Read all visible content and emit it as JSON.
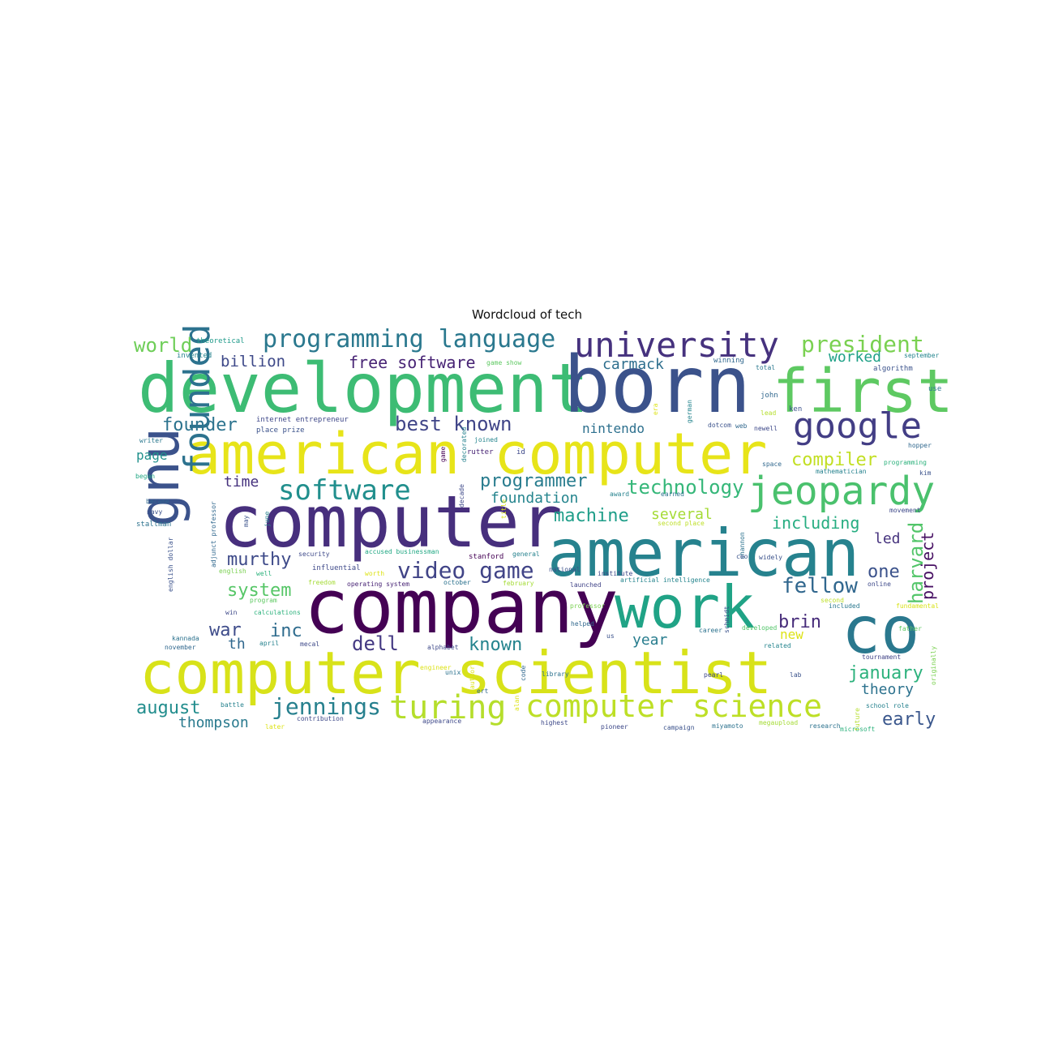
{
  "chart_data": {
    "type": "wordcloud",
    "title": "Wordcloud of tech",
    "background": "#ffffff",
    "colormap": "viridis",
    "words": [
      {
        "text": "development",
        "color": "#3dbc74"
      },
      {
        "text": "born",
        "color": "#3b528b"
      },
      {
        "text": "first",
        "color": "#5ec962"
      },
      {
        "text": "american computer",
        "color": "#e7e419"
      },
      {
        "text": "computer",
        "color": "#472f7d"
      },
      {
        "text": "american",
        "color": "#26828e"
      },
      {
        "text": "company",
        "color": "#440154"
      },
      {
        "text": "work",
        "color": "#20a386"
      },
      {
        "text": "co",
        "color": "#2a788e"
      },
      {
        "text": "computer scientist",
        "color": "#d8e219"
      },
      {
        "text": "gnu",
        "color": "#3b528b"
      },
      {
        "text": "founded",
        "color": "#2c728e"
      },
      {
        "text": "university",
        "color": "#46327e"
      },
      {
        "text": "google",
        "color": "#433e85"
      },
      {
        "text": "jeopardy",
        "color": "#4ac16d"
      },
      {
        "text": "programming language",
        "color": "#2a788e"
      },
      {
        "text": "president",
        "color": "#7ad151"
      },
      {
        "text": "computer science",
        "color": "#bddf26"
      },
      {
        "text": "turing",
        "color": "#b5de2b"
      },
      {
        "text": "software",
        "color": "#218f8d"
      },
      {
        "text": "video game",
        "color": "#414487"
      },
      {
        "text": "best known",
        "color": "#404588"
      },
      {
        "text": "jennings",
        "color": "#27808e"
      },
      {
        "text": "world",
        "color": "#6ece58"
      },
      {
        "text": "billion",
        "color": "#3e4989"
      },
      {
        "text": "free software",
        "color": "#482475"
      },
      {
        "text": "carmack",
        "color": "#2e6f8e"
      },
      {
        "text": "worked",
        "color": "#1fa187"
      },
      {
        "text": "founder",
        "color": "#2c738e"
      },
      {
        "text": "nintendo",
        "color": "#2d708e"
      },
      {
        "text": "compiler",
        "color": "#c2df23"
      },
      {
        "text": "page",
        "color": "#21918c"
      },
      {
        "text": "time",
        "color": "#46327e"
      },
      {
        "text": "programmer",
        "color": "#287c8e"
      },
      {
        "text": "foundation",
        "color": "#25858e"
      },
      {
        "text": "technology",
        "color": "#35b779"
      },
      {
        "text": "machine",
        "color": "#1f9e89"
      },
      {
        "text": "several",
        "color": "#a5db36"
      },
      {
        "text": "including",
        "color": "#26ad81"
      },
      {
        "text": "murthy",
        "color": "#3e4a89"
      },
      {
        "text": "system",
        "color": "#56c667"
      },
      {
        "text": "fellow",
        "color": "#31678e"
      },
      {
        "text": "led",
        "color": "#46337e"
      },
      {
        "text": "one",
        "color": "#3b528b"
      },
      {
        "text": "harvard",
        "color": "#52c569"
      },
      {
        "text": "project",
        "color": "#471063"
      },
      {
        "text": "war",
        "color": "#3e4c8a"
      },
      {
        "text": "inc",
        "color": "#2f6c8e"
      },
      {
        "text": "th",
        "color": "#31688e"
      },
      {
        "text": "dell",
        "color": "#443983"
      },
      {
        "text": "known",
        "color": "#25848e"
      },
      {
        "text": "brin",
        "color": "#472c7a"
      },
      {
        "text": "new",
        "color": "#dde318"
      },
      {
        "text": "year",
        "color": "#287d8e"
      },
      {
        "text": "january",
        "color": "#2db27d"
      },
      {
        "text": "theory",
        "color": "#2c728e"
      },
      {
        "text": "early",
        "color": "#39568c"
      },
      {
        "text": "august",
        "color": "#228d8d"
      },
      {
        "text": "thompson",
        "color": "#297a8e"
      },
      {
        "text": "theoretical",
        "color": "#1f9a8a"
      },
      {
        "text": "invented",
        "color": "#26828e"
      },
      {
        "text": "game show",
        "color": "#5ec962"
      },
      {
        "text": "winning",
        "color": "#31688e"
      },
      {
        "text": "total",
        "color": "#2a788e"
      },
      {
        "text": "algorithm",
        "color": "#3b528b"
      },
      {
        "text": "september",
        "color": "#25858e"
      },
      {
        "text": "use",
        "color": "#2a788e"
      },
      {
        "text": "internet entrepreneur",
        "color": "#3f4889"
      },
      {
        "text": "place prize",
        "color": "#3b528b"
      },
      {
        "text": "writer",
        "color": "#2a788e"
      },
      {
        "text": "joined",
        "color": "#25858e"
      },
      {
        "text": "rutter",
        "color": "#482475"
      },
      {
        "text": "id",
        "color": "#3e4989"
      },
      {
        "text": "john",
        "color": "#31688e"
      },
      {
        "text": "ken",
        "color": "#3b528b"
      },
      {
        "text": "lead",
        "color": "#b5de2b"
      },
      {
        "text": "german",
        "color": "#25858e"
      },
      {
        "text": "dotcom",
        "color": "#3b528b"
      },
      {
        "text": "web",
        "color": "#31688e"
      },
      {
        "text": "newell",
        "color": "#3e4989"
      },
      {
        "text": "hopper",
        "color": "#31688e"
      },
      {
        "text": "space",
        "color": "#31688e"
      },
      {
        "text": "mathematician",
        "color": "#26828e"
      },
      {
        "text": "kim",
        "color": "#3b528b"
      },
      {
        "text": "programming",
        "color": "#2db27d"
      },
      {
        "text": "began",
        "color": "#22a884"
      },
      {
        "text": "became",
        "color": "#31688e"
      },
      {
        "text": "navy",
        "color": "#3b528b"
      },
      {
        "text": "stallman",
        "color": "#2c728e"
      },
      {
        "text": "award",
        "color": "#26828e"
      },
      {
        "text": "earned",
        "color": "#2c728e"
      },
      {
        "text": "movement",
        "color": "#3e4989"
      },
      {
        "text": "second place",
        "color": "#bddf26"
      },
      {
        "text": "security",
        "color": "#3e4989"
      },
      {
        "text": "accused businessman",
        "color": "#22a884"
      },
      {
        "text": "stanford",
        "color": "#440154"
      },
      {
        "text": "general",
        "color": "#26828e"
      },
      {
        "text": "shannon",
        "color": "#2c728e"
      },
      {
        "text": "ceo",
        "color": "#3b528b"
      },
      {
        "text": "widely",
        "color": "#3b528b"
      },
      {
        "text": "english",
        "color": "#7ad151"
      },
      {
        "text": "well",
        "color": "#2db27d"
      },
      {
        "text": "influential",
        "color": "#3e4989"
      },
      {
        "text": "worth",
        "color": "#dde318"
      },
      {
        "text": "freedom",
        "color": "#a5db36"
      },
      {
        "text": "operating system",
        "color": "#482475"
      },
      {
        "text": "october",
        "color": "#2c728e"
      },
      {
        "text": "february",
        "color": "#a5db36"
      },
      {
        "text": "launched",
        "color": "#414487"
      },
      {
        "text": "artificial intelligence",
        "color": "#25858e"
      },
      {
        "text": "online",
        "color": "#3e4989"
      },
      {
        "text": "program",
        "color": "#5ec962"
      },
      {
        "text": "calculations",
        "color": "#2db27d"
      },
      {
        "text": "win",
        "color": "#3e4989"
      },
      {
        "text": "second",
        "color": "#bddf26"
      },
      {
        "text": "included",
        "color": "#2a788e"
      },
      {
        "text": "fundamental",
        "color": "#d8e219"
      },
      {
        "text": "professor",
        "color": "#7ad151"
      },
      {
        "text": "kannada",
        "color": "#2c728e"
      },
      {
        "text": "november",
        "color": "#31688e"
      },
      {
        "text": "april",
        "color": "#26828e"
      },
      {
        "text": "mecal",
        "color": "#3e4989"
      },
      {
        "text": "helped",
        "color": "#31688e"
      },
      {
        "text": "us",
        "color": "#3b528b"
      },
      {
        "text": "career",
        "color": "#2c728e"
      },
      {
        "text": "developed",
        "color": "#52c569"
      },
      {
        "text": "related",
        "color": "#25858e"
      },
      {
        "text": "father",
        "color": "#5ec962"
      },
      {
        "text": "alphabet",
        "color": "#3e4989"
      },
      {
        "text": "tournament",
        "color": "#414487"
      },
      {
        "text": "unix",
        "color": "#2c728e"
      },
      {
        "text": "library",
        "color": "#2c728e"
      },
      {
        "text": "pearl",
        "color": "#3e4989"
      },
      {
        "text": "lab",
        "color": "#3b528b"
      },
      {
        "text": "ert",
        "color": "#31688e"
      },
      {
        "text": "battle",
        "color": "#26828e"
      },
      {
        "text": "contribution",
        "color": "#3e4989"
      },
      {
        "text": "appearance",
        "color": "#3e4989"
      },
      {
        "text": "highest",
        "color": "#3e4989"
      },
      {
        "text": "school role",
        "color": "#26828e"
      },
      {
        "text": "later",
        "color": "#dde318"
      },
      {
        "text": "pioneer",
        "color": "#3e4989"
      },
      {
        "text": "campaign",
        "color": "#3b528b"
      },
      {
        "text": "miyamoto",
        "color": "#2c728e"
      },
      {
        "text": "megaupload",
        "color": "#a5db36"
      },
      {
        "text": "research",
        "color": "#2c728e"
      },
      {
        "text": "microsoft",
        "color": "#2db27d"
      },
      {
        "text": "engineer",
        "color": "#dde318"
      },
      {
        "text": "national",
        "color": "#3b528b"
      },
      {
        "text": "institute",
        "color": "#3e4989"
      },
      {
        "text": "may",
        "color": "#3b528b"
      },
      {
        "text": "june",
        "color": "#26828e"
      },
      {
        "text": "adjunct professor",
        "color": "#31688e"
      },
      {
        "text": "english dollar",
        "color": "#3b528b"
      },
      {
        "text": "decade",
        "color": "#3e4989"
      },
      {
        "text": "decorated",
        "color": "#26828e"
      },
      {
        "text": "game",
        "color": "#440154"
      },
      {
        "text": "title",
        "color": "#dde318"
      },
      {
        "text": "author",
        "color": "#dde318"
      },
      {
        "text": "code",
        "color": "#31688e"
      },
      {
        "text": "alan",
        "color": "#dde318"
      },
      {
        "text": "schmidt",
        "color": "#3b528b"
      },
      {
        "text": "originally",
        "color": "#7ad151"
      },
      {
        "text": "future",
        "color": "#b5de2b"
      },
      {
        "text": "era",
        "color": "#dde318"
      }
    ]
  }
}
